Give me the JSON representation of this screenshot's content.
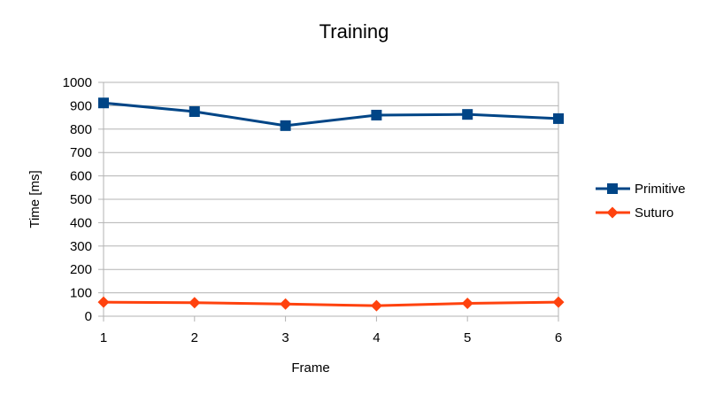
{
  "chart_data": {
    "type": "line",
    "title": "Training",
    "xlabel": "Frame",
    "ylabel": "Time [ms]",
    "x": [
      1,
      2,
      3,
      4,
      5,
      6
    ],
    "ylim": [
      0,
      1000
    ],
    "yticks": [
      0,
      100,
      200,
      300,
      400,
      500,
      600,
      700,
      800,
      900,
      1000
    ],
    "grid": "horizontal",
    "legend_position": "right",
    "series": [
      {
        "name": "Primitive",
        "color": "#004586",
        "marker": "square",
        "values": [
          912,
          875,
          815,
          860,
          863,
          845
        ]
      },
      {
        "name": "Suturo",
        "color": "#FF420E",
        "marker": "diamond",
        "values": [
          60,
          58,
          52,
          45,
          55,
          60
        ]
      }
    ]
  }
}
